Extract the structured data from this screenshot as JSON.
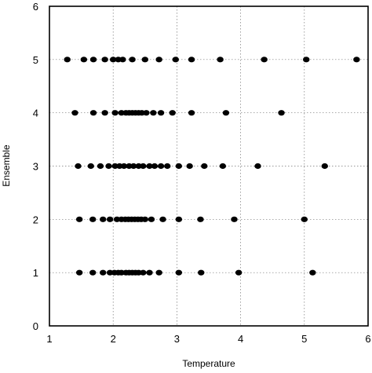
{
  "chart_data": {
    "type": "scatter",
    "xlabel": "Temperature",
    "ylabel": "Ensemble",
    "xlim": [
      1,
      6
    ],
    "ylim": [
      0,
      6
    ],
    "grid": true,
    "x_ticks": [
      "1",
      "2",
      "3",
      "4",
      "5",
      "6"
    ],
    "y_ticks": [
      "0",
      "1",
      "2",
      "3",
      "4",
      "5",
      "6"
    ],
    "series": [
      {
        "y": 5,
        "x": [
          1.28,
          1.54,
          1.69,
          1.87,
          2.0,
          2.08,
          2.15,
          2.3,
          2.5,
          2.72,
          2.98,
          3.23,
          3.68,
          4.37,
          5.03,
          5.82
        ]
      },
      {
        "y": 4,
        "x": [
          1.4,
          1.69,
          1.87,
          2.03,
          2.13,
          2.2,
          2.25,
          2.3,
          2.35,
          2.4,
          2.45,
          2.52,
          2.63,
          2.75,
          2.93,
          3.23,
          3.77,
          4.64
        ]
      },
      {
        "y": 3,
        "x": [
          1.45,
          1.65,
          1.8,
          1.93,
          2.03,
          2.1,
          2.17,
          2.25,
          2.32,
          2.4,
          2.47,
          2.57,
          2.65,
          2.75,
          2.85,
          3.03,
          3.2,
          3.43,
          3.72,
          4.27,
          5.32
        ]
      },
      {
        "y": 2,
        "x": [
          1.47,
          1.68,
          1.84,
          1.95,
          2.06,
          2.13,
          2.19,
          2.24,
          2.29,
          2.34,
          2.39,
          2.44,
          2.5,
          2.6,
          2.78,
          3.03,
          3.37,
          3.9,
          5.0
        ]
      },
      {
        "y": 1,
        "x": [
          1.47,
          1.68,
          1.84,
          1.95,
          2.02,
          2.08,
          2.13,
          2.2,
          2.25,
          2.3,
          2.35,
          2.4,
          2.47,
          2.57,
          2.72,
          3.03,
          3.38,
          3.97,
          5.13
        ]
      }
    ]
  }
}
